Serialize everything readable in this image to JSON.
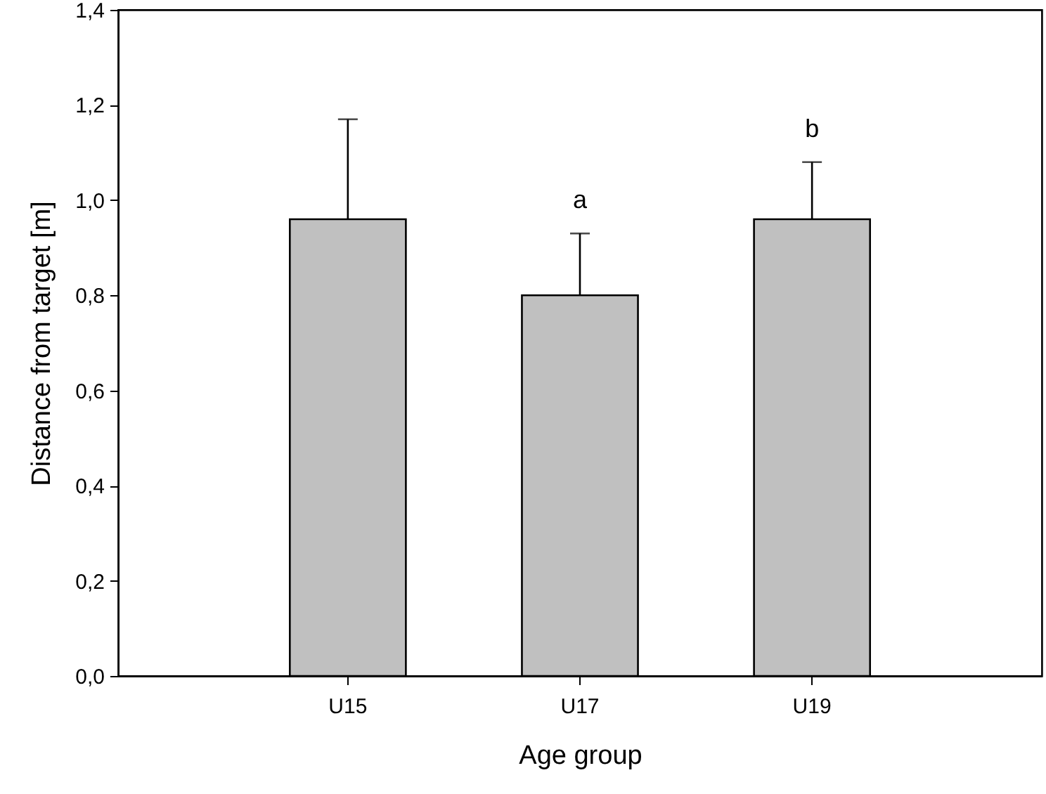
{
  "chart_data": {
    "type": "bar",
    "xlabel": "Age group",
    "ylabel": "Distance from target [m]",
    "categories": [
      "U15",
      "U17",
      "U19"
    ],
    "values": [
      0.96,
      0.8,
      0.96
    ],
    "errors": [
      [
        0.96,
        1.17
      ],
      [
        0.8,
        0.93
      ],
      [
        0.96,
        1.08
      ]
    ],
    "color": "#c0c0c0",
    "ylim": [
      0,
      1.4
    ],
    "yticks": [
      {
        "value": 0,
        "label": "0,0"
      },
      {
        "value": 0.2,
        "label": "0,2"
      },
      {
        "value": 0.4,
        "label": "0,4"
      },
      {
        "value": 0.6,
        "label": "0,6"
      },
      {
        "value": 0.8,
        "label": "0,8"
      },
      {
        "value": 1.0,
        "label": "1,0"
      },
      {
        "value": 1.2,
        "label": "1,2"
      },
      {
        "value": 1.4,
        "label": "1,4"
      }
    ],
    "annotations": [
      "a",
      "b"
    ],
    "grid": false
  }
}
